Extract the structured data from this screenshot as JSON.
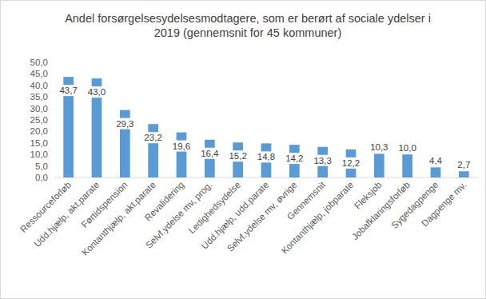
{
  "chart_data": {
    "type": "bar",
    "title": "Andel forsørgelsesydelsesmodtagere, som er berørt af sociale ydelser i\n2019 (gennemsnit for 45 kommuner)",
    "categories": [
      "Ressourceforløb",
      "Udd.hjælp, akt.parate",
      "Førtidspension",
      "Kontanthjælp, akt.parate",
      "Revalidering",
      "Selvf.ydelse mv, prog.",
      "Ledighedsydelse",
      "Udd.hjælp, udd.parate",
      "Selvf.ydelse mv, øvrige",
      "Gennemsnit",
      "Kontanthjælp, jobparate",
      "Fleksjob",
      "Jobafklaringsforløb",
      "Sygedagpenge",
      "Dagpenge mv."
    ],
    "values": [
      43.7,
      43.0,
      29.3,
      23.2,
      19.6,
      16.4,
      15.2,
      14.8,
      14.2,
      13.3,
      12.2,
      10.3,
      10.0,
      4.4,
      2.7
    ],
    "value_labels": [
      "43,7",
      "43,0",
      "29,3",
      "23,2",
      "19,6",
      "16,4",
      "15,2",
      "14,8",
      "14,2",
      "13,3",
      "12,2",
      "10,3",
      "10,0",
      "4,4",
      "2,7"
    ],
    "data_labels": true,
    "color": "#5b9bd5",
    "grid": false,
    "ylim": [
      0,
      50
    ],
    "yticks": [
      {
        "value": 0,
        "label": "0,0"
      },
      {
        "value": 5,
        "label": "5,0"
      },
      {
        "value": 10,
        "label": "10,0"
      },
      {
        "value": 15,
        "label": "15,0"
      },
      {
        "value": 20,
        "label": "20,0"
      },
      {
        "value": 25,
        "label": "25,0"
      },
      {
        "value": 30,
        "label": "30,0"
      },
      {
        "value": 35,
        "label": "35,0"
      },
      {
        "value": 40,
        "label": "40,0"
      },
      {
        "value": 45,
        "label": "45,0"
      },
      {
        "value": 50,
        "label": "50,0"
      }
    ]
  }
}
